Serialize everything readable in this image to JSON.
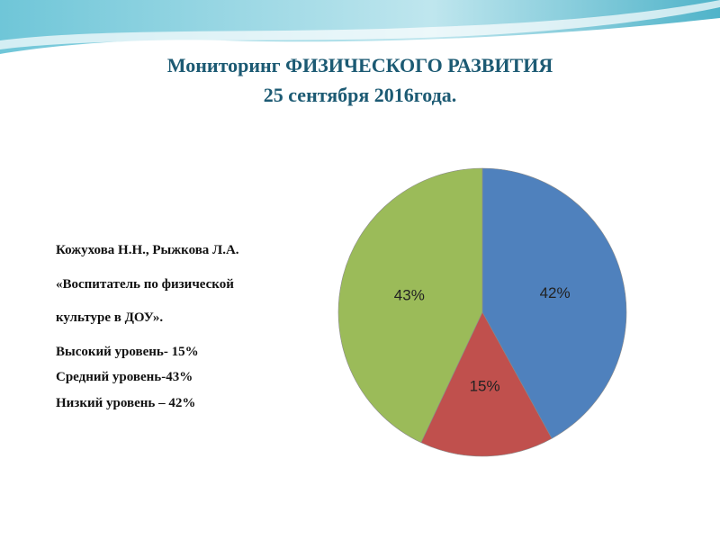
{
  "slide": {
    "title": [
      "Мониторинг ФИЗИЧЕСКОГО РАЗВИТИЯ",
      "25 сентября 2016года."
    ],
    "text": [
      "Кожухова Н.Н., Рыжкова Л.А.",
      "«Воспитатель по физической",
      "культуре в ДОУ».",
      "Высокий уровень- 15%",
      "Средний уровень-43%",
      "Низкий уровень – 42%"
    ]
  },
  "chart_data": {
    "type": "pie",
    "values": [
      42,
      15,
      43
    ],
    "value_labels": [
      "42%",
      "15%",
      "43%"
    ],
    "colors": [
      "#4f81bd",
      "#c0504d",
      "#9bbb59"
    ]
  }
}
